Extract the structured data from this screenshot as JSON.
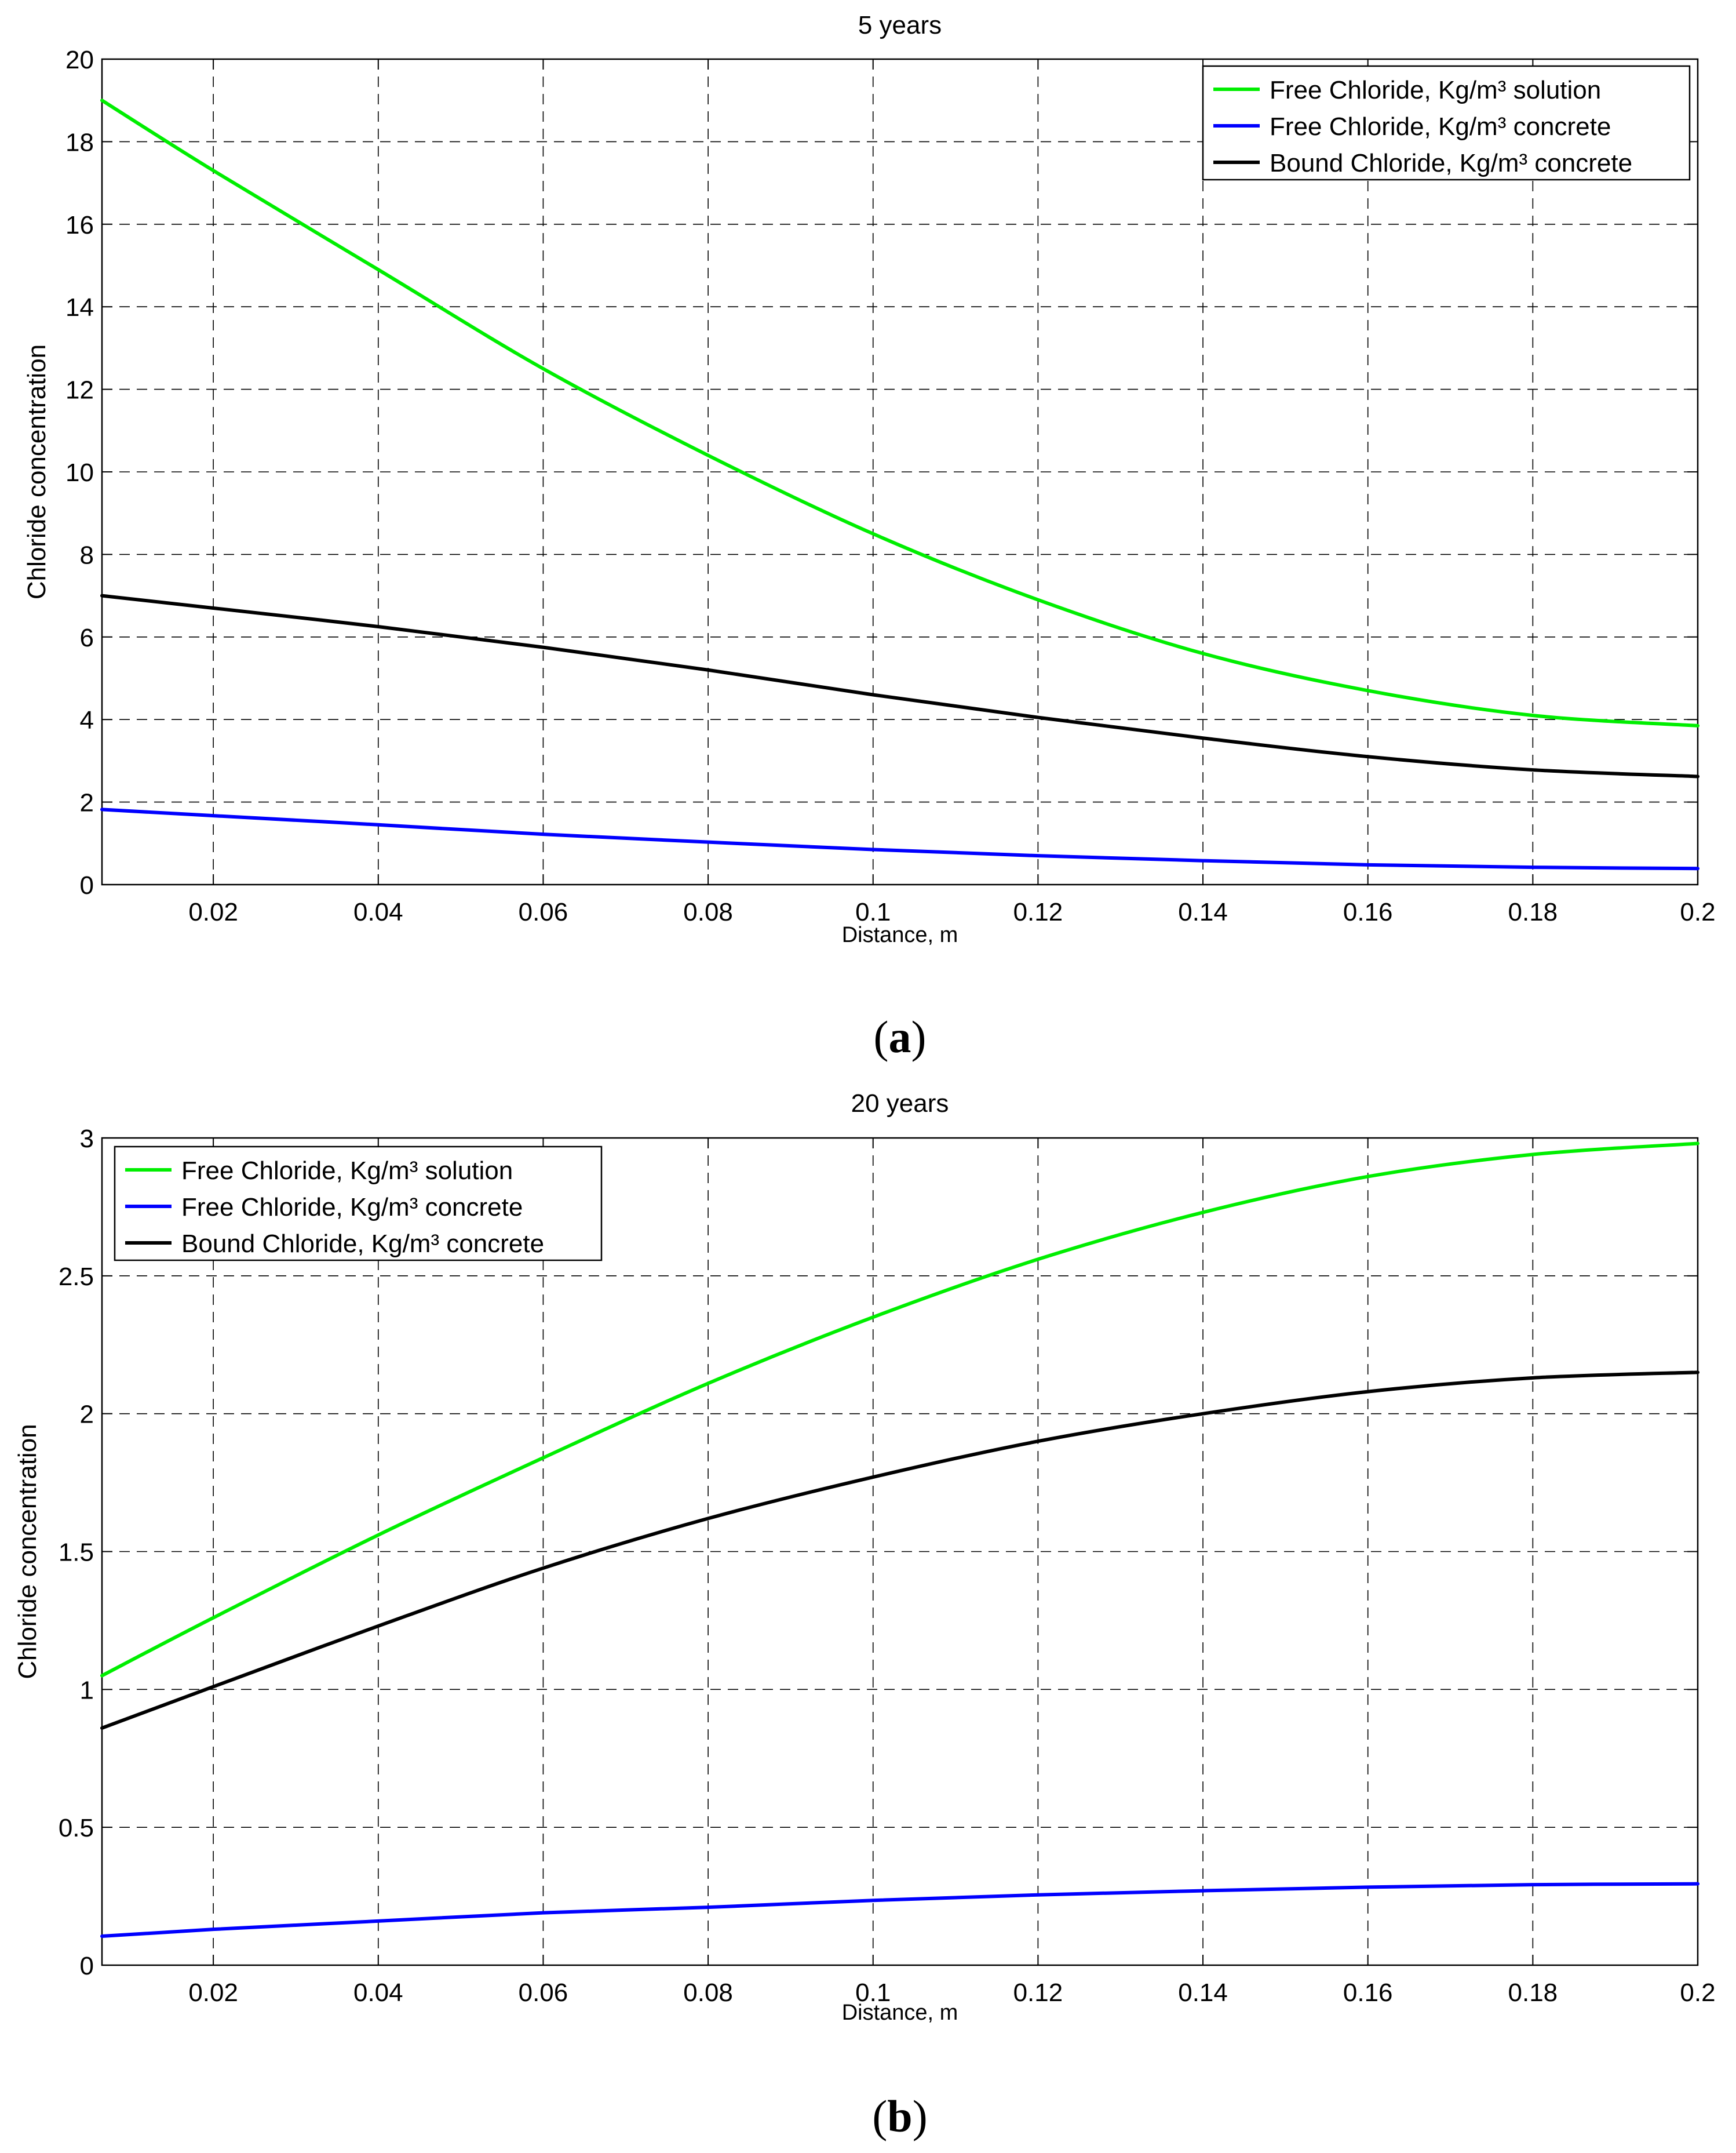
{
  "chart_data": [
    {
      "type": "line",
      "panel_label": "a",
      "title": "5 years",
      "xlabel": "Distance, m",
      "ylabel": "Chloride concentration",
      "xlim": [
        0.0065,
        0.2
      ],
      "ylim": [
        0,
        20
      ],
      "xticks": [
        0.02,
        0.04,
        0.06,
        0.08,
        0.1,
        0.12,
        0.14,
        0.16,
        0.18,
        0.2
      ],
      "xtick_labels": [
        "0.02",
        "0.04",
        "0.06",
        "0.08",
        "0.1",
        "0.12",
        "0.14",
        "0.16",
        "0.18",
        "0.2"
      ],
      "yticks": [
        0,
        2,
        4,
        6,
        8,
        10,
        12,
        14,
        16,
        18,
        20
      ],
      "ytick_labels": [
        "0",
        "2",
        "4",
        "6",
        "8",
        "10",
        "12",
        "14",
        "16",
        "18",
        "20"
      ],
      "grid": true,
      "legend_position": "top-right",
      "x": [
        0.0065,
        0.02,
        0.04,
        0.06,
        0.08,
        0.1,
        0.12,
        0.14,
        0.16,
        0.18,
        0.2
      ],
      "series": [
        {
          "name": "Free Chloride, Kg/m³ solution",
          "color": "#00ee00",
          "values": [
            19.0,
            17.3,
            14.9,
            12.5,
            10.4,
            8.5,
            6.9,
            5.6,
            4.7,
            4.1,
            3.85
          ]
        },
        {
          "name": "Free Chloride, Kg/m³ concrete",
          "color": "#0000ff",
          "values": [
            1.82,
            1.67,
            1.45,
            1.22,
            1.03,
            0.85,
            0.7,
            0.58,
            0.48,
            0.42,
            0.39
          ]
        },
        {
          "name": "Bound Chloride, Kg/m³ concrete",
          "color": "#000000",
          "values": [
            7.0,
            6.7,
            6.25,
            5.75,
            5.2,
            4.6,
            4.05,
            3.55,
            3.1,
            2.78,
            2.62
          ]
        }
      ]
    },
    {
      "type": "line",
      "panel_label": "b",
      "title": "20 years",
      "xlabel": "Distance, m",
      "ylabel": "Chloride concentration",
      "xlim": [
        0.0065,
        0.2
      ],
      "ylim": [
        0,
        3
      ],
      "xticks": [
        0.02,
        0.04,
        0.06,
        0.08,
        0.1,
        0.12,
        0.14,
        0.16,
        0.18,
        0.2
      ],
      "xtick_labels": [
        "0.02",
        "0.04",
        "0.06",
        "0.08",
        "0.1",
        "0.12",
        "0.14",
        "0.16",
        "0.18",
        "0.2"
      ],
      "yticks": [
        0,
        0.5,
        1,
        1.5,
        2,
        2.5,
        3
      ],
      "ytick_labels": [
        "0",
        "0.5",
        "1",
        "1.5",
        "2",
        "2.5",
        "3"
      ],
      "grid": true,
      "legend_position": "top-left",
      "x": [
        0.0065,
        0.02,
        0.04,
        0.06,
        0.08,
        0.1,
        0.12,
        0.14,
        0.16,
        0.18,
        0.2
      ],
      "series": [
        {
          "name": "Free Chloride, Kg/m³ solution",
          "color": "#00ee00",
          "values": [
            1.05,
            1.26,
            1.56,
            1.84,
            2.11,
            2.35,
            2.56,
            2.73,
            2.86,
            2.94,
            2.98
          ]
        },
        {
          "name": "Free Chloride, Kg/m³ concrete",
          "color": "#0000ff",
          "values": [
            0.105,
            0.13,
            0.16,
            0.19,
            0.21,
            0.235,
            0.255,
            0.27,
            0.283,
            0.292,
            0.295
          ]
        },
        {
          "name": "Bound Chloride, Kg/m³ concrete",
          "color": "#000000",
          "values": [
            0.86,
            1.01,
            1.23,
            1.44,
            1.62,
            1.77,
            1.9,
            2.0,
            2.08,
            2.13,
            2.15
          ]
        }
      ]
    }
  ]
}
